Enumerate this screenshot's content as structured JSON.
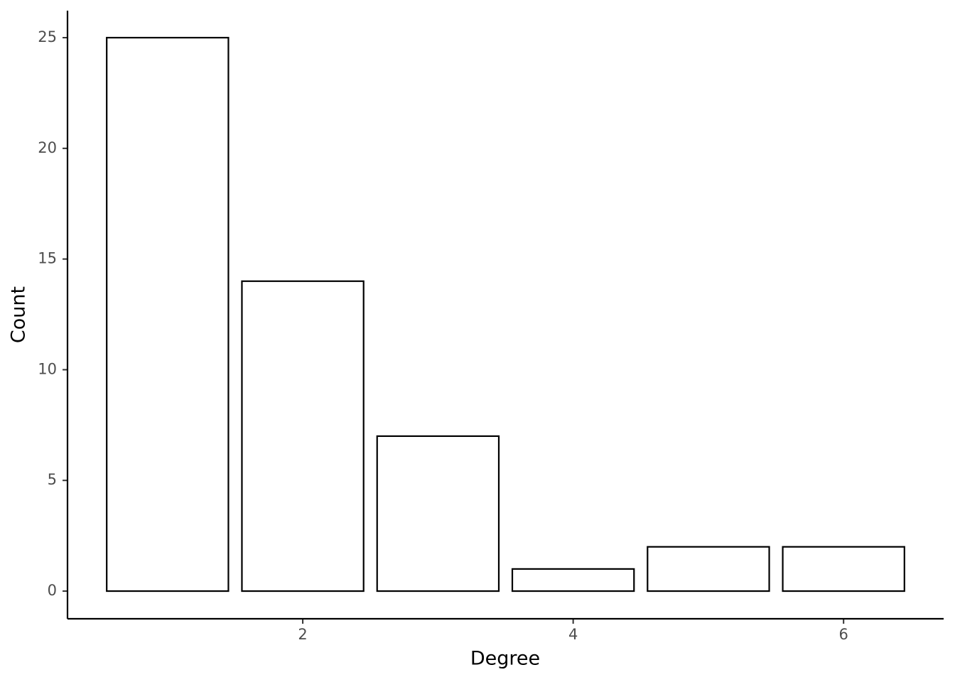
{
  "chart_data": {
    "type": "bar",
    "x_label": "Degree",
    "y_label": "Count",
    "x": [
      1,
      2,
      3,
      4,
      5,
      6
    ],
    "values": [
      25,
      14,
      7,
      1,
      2,
      2
    ],
    "color": "#ffffff",
    "edge_color": "#000000",
    "xlim": [
      0.26,
      6.74
    ],
    "xticks": [
      2,
      4,
      6
    ],
    "ylim": [
      -1.25,
      26.22
    ],
    "yticks": [
      0,
      5,
      10,
      15,
      20,
      25
    ],
    "grid": false
  }
}
